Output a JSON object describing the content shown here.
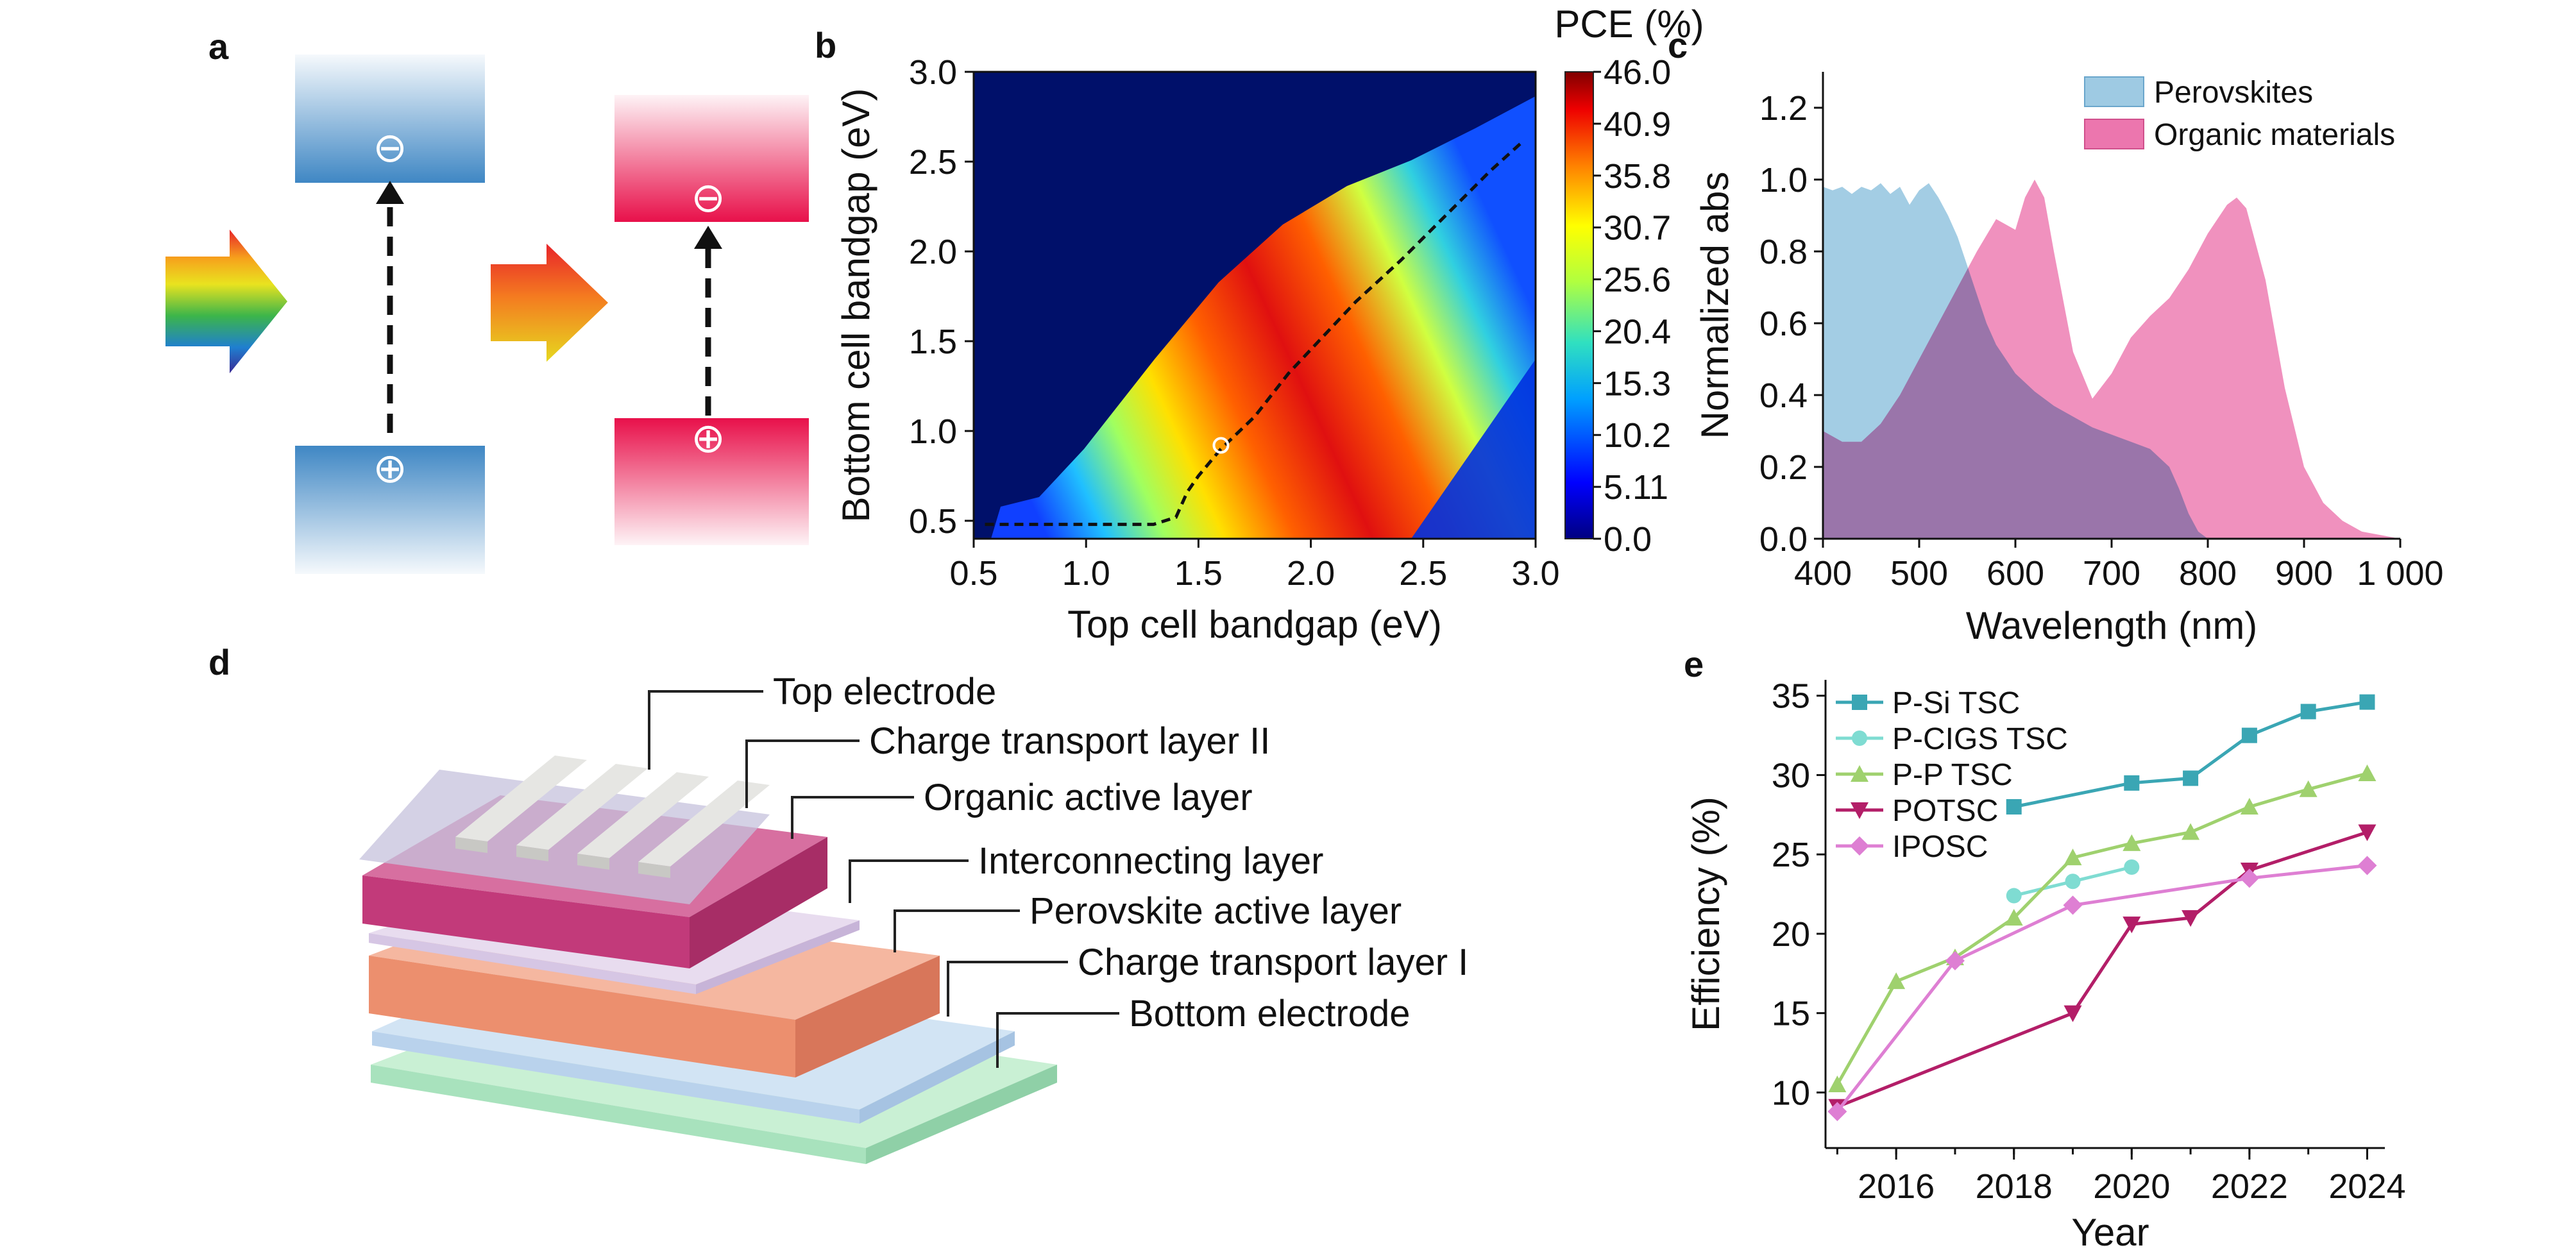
{
  "panel_labels": {
    "a": "a",
    "b": "b",
    "c": "c",
    "d": "d",
    "e": "e"
  },
  "panel_a": {
    "minus_symbol": "⊖",
    "plus_symbol": "⊕",
    "perovskite_color": "#3f87c4",
    "organic_color": "#e8104a"
  },
  "panel_d": {
    "layers": [
      "Top electrode",
      "Charge transport layer II",
      "Organic active layer",
      "Interconnecting layer",
      "Perovskite active layer",
      "Charge transport layer I",
      "Bottom electrode"
    ]
  },
  "chart_data": [
    {
      "panel": "b",
      "type": "heatmap",
      "xlabel": "Top cell bandgap (eV)",
      "ylabel": "Bottom cell bandgap (eV)",
      "xlim": [
        0.5,
        3.0
      ],
      "ylim": [
        0.4,
        3.0
      ],
      "xticks": [
        "0.5",
        "1.0",
        "1.5",
        "2.0",
        "2.5",
        "3.0"
      ],
      "yticks": [
        "0.5",
        "1.0",
        "1.5",
        "2.0",
        "2.5",
        "3.0"
      ],
      "colorbar_title": "PCE (%)",
      "colorbar_ticks": [
        "46.0",
        "40.9",
        "35.8",
        "30.7",
        "25.6",
        "20.4",
        "15.3",
        "10.2",
        "5.11",
        "0.0"
      ],
      "colorbar_range": [
        0.0,
        46.0
      ],
      "optimum": {
        "x": 1.6,
        "y": 0.92
      },
      "max_efficiency_path": {
        "x": [
          0.55,
          1.0,
          1.3,
          1.4,
          1.45,
          1.5,
          1.6,
          1.75,
          1.9,
          2.05,
          2.2,
          2.4,
          2.6,
          2.8,
          2.95
        ],
        "y": [
          0.48,
          0.48,
          0.48,
          0.52,
          0.66,
          0.75,
          0.9,
          1.08,
          1.32,
          1.52,
          1.72,
          1.95,
          2.2,
          2.45,
          2.62
        ]
      }
    },
    {
      "panel": "c",
      "type": "area",
      "xlabel": "Wavelength (nm)",
      "ylabel": "Normalized abs",
      "xlim": [
        400,
        1000
      ],
      "ylim": [
        0,
        1.3
      ],
      "xticks": [
        "400",
        "500",
        "600",
        "700",
        "800",
        "900",
        "1 000"
      ],
      "yticks": [
        "0.0",
        "0.2",
        "0.4",
        "0.6",
        "0.8",
        "1.0",
        "1.2"
      ],
      "legend_position": "top-right",
      "series": [
        {
          "name": "Perovskites",
          "color": "#9ecae3",
          "x": [
            400,
            410,
            420,
            430,
            440,
            450,
            460,
            470,
            480,
            490,
            500,
            510,
            520,
            530,
            540,
            550,
            560,
            570,
            580,
            590,
            600,
            620,
            640,
            660,
            680,
            700,
            720,
            740,
            760,
            770,
            780,
            790,
            800
          ],
          "y": [
            0.98,
            0.97,
            0.98,
            0.96,
            0.98,
            0.97,
            0.99,
            0.96,
            0.98,
            0.93,
            0.97,
            0.99,
            0.95,
            0.9,
            0.84,
            0.76,
            0.68,
            0.6,
            0.54,
            0.5,
            0.46,
            0.41,
            0.37,
            0.34,
            0.31,
            0.29,
            0.27,
            0.25,
            0.2,
            0.14,
            0.07,
            0.02,
            0.0
          ]
        },
        {
          "name": "Organic materials",
          "color": "#ec76ae",
          "x": [
            400,
            420,
            440,
            460,
            480,
            500,
            520,
            540,
            560,
            580,
            600,
            610,
            620,
            630,
            640,
            660,
            680,
            700,
            720,
            740,
            760,
            780,
            800,
            820,
            830,
            840,
            860,
            880,
            900,
            920,
            940,
            960,
            980,
            1000
          ],
          "y": [
            0.3,
            0.27,
            0.27,
            0.32,
            0.4,
            0.5,
            0.6,
            0.7,
            0.8,
            0.89,
            0.86,
            0.95,
            1.0,
            0.95,
            0.8,
            0.52,
            0.39,
            0.46,
            0.56,
            0.62,
            0.67,
            0.75,
            0.85,
            0.93,
            0.95,
            0.92,
            0.72,
            0.42,
            0.2,
            0.1,
            0.05,
            0.02,
            0.01,
            0.0
          ]
        }
      ]
    },
    {
      "panel": "e",
      "type": "line",
      "xlabel": "Year",
      "ylabel": "Efficiency (%)",
      "xlim": [
        2014.8,
        2024.3
      ],
      "ylim": [
        6.5,
        36
      ],
      "xticks": [
        "2016",
        "2018",
        "2020",
        "2022",
        "2024"
      ],
      "yticks": [
        "10",
        "15",
        "20",
        "25",
        "30",
        "35"
      ],
      "legend_position": "top-left",
      "series": [
        {
          "name": "P-Si TSC",
          "color": "#3aa6b4",
          "marker": "square",
          "x": [
            2018,
            2020,
            2021,
            2022,
            2023,
            2024
          ],
          "y": [
            28.0,
            29.5,
            29.8,
            32.5,
            34.0,
            34.6
          ]
        },
        {
          "name": "P-CIGS TSC",
          "color": "#7fdcd2",
          "marker": "circle",
          "x": [
            2018,
            2019,
            2020
          ],
          "y": [
            22.4,
            23.3,
            24.2
          ]
        },
        {
          "name": "P-P TSC",
          "color": "#9fd16e",
          "marker": "triangle",
          "x": [
            2015,
            2016,
            2017,
            2018,
            2019,
            2020,
            2021,
            2022,
            2023,
            2024
          ],
          "y": [
            10.5,
            17.0,
            18.5,
            21.0,
            24.8,
            25.7,
            26.4,
            28.0,
            29.1,
            30.1
          ]
        },
        {
          "name": "POTSC",
          "color": "#b31e68",
          "marker": "triangle-down",
          "x": [
            2015,
            2019,
            2020,
            2021,
            2022,
            2024
          ],
          "y": [
            9.1,
            15.0,
            20.6,
            21.0,
            24.0,
            26.4
          ]
        },
        {
          "name": "IPOSC",
          "color": "#de7fd3",
          "marker": "diamond",
          "x": [
            2015,
            2017,
            2019,
            2022,
            2024
          ],
          "y": [
            8.8,
            18.3,
            21.8,
            23.5,
            24.3
          ]
        }
      ]
    }
  ]
}
